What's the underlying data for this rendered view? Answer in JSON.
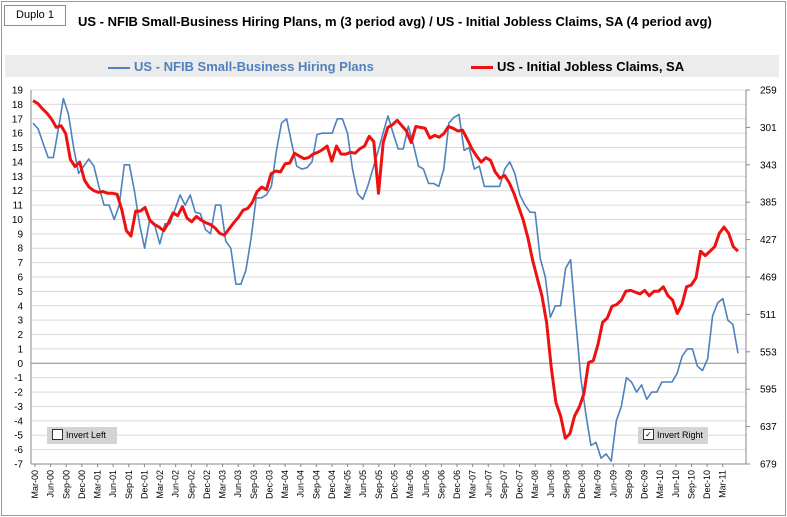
{
  "widget": {
    "label": "Duplo 1"
  },
  "chart_data": {
    "type": "line",
    "title": "US - NFIB Small-Business Hiring Plans, m (3 period avg) / US - Initial Jobless Claims, SA (4 period avg)",
    "legend_position": "top",
    "grid": "horizontal",
    "x_tick_labels": [
      "Mar-00",
      "Jun-00",
      "Sep-00",
      "Dec-00",
      "Mar-01",
      "Jun-01",
      "Sep-01",
      "Dec-01",
      "Mar-02",
      "Jun-02",
      "Sep-02",
      "Dec-02",
      "Mar-03",
      "Jun-03",
      "Sep-03",
      "Dec-03",
      "Mar-04",
      "Jun-04",
      "Sep-04",
      "Dec-04",
      "Mar-05",
      "Jun-05",
      "Sep-05",
      "Dec-05",
      "Mar-06",
      "Jun-06",
      "Sep-06",
      "Dec-06",
      "Mar-07",
      "Jun-07",
      "Sep-07",
      "Dec-07",
      "Mar-08",
      "Jun-08",
      "Sep-08",
      "Dec-08",
      "Mar-09",
      "Jun-09",
      "Sep-09",
      "Dec-09",
      "Mar-10",
      "Jun-10",
      "Sep-10",
      "Dec-10",
      "Mar-11"
    ],
    "left_axis": {
      "min": -7,
      "max": 19,
      "ticks": [
        19,
        18,
        17,
        16,
        15,
        14,
        13,
        12,
        11,
        10,
        9,
        8,
        7,
        6,
        5,
        4,
        3,
        2,
        1,
        0,
        -1,
        -2,
        -3,
        -4,
        -5,
        -6,
        -7
      ]
    },
    "right_axis": {
      "min": 259,
      "max": 679,
      "inverted": true,
      "ticks": [
        259,
        301,
        343,
        385,
        427,
        469,
        511,
        553,
        595,
        637,
        679
      ]
    },
    "series": [
      {
        "name": "US - NFIB Small-Business Hiring Plans",
        "axis": "left",
        "color": "#4f81bd",
        "values": [
          16.7,
          16.3,
          15.3,
          14.3,
          14.3,
          16.3,
          18.4,
          17.3,
          15,
          13.2,
          13.7,
          14.2,
          13.7,
          12.3,
          11,
          11,
          10,
          11,
          13.8,
          13.8,
          12,
          9.7,
          8,
          10,
          9.6,
          8.3,
          9.7,
          9.7,
          10.7,
          11.7,
          11,
          11.7,
          10.5,
          10.4,
          9.3,
          9,
          11,
          11,
          8.5,
          8,
          5.5,
          5.5,
          6.5,
          8.7,
          11.5,
          11.5,
          11.7,
          12.3,
          14.8,
          16.7,
          17,
          15.3,
          13.7,
          13.5,
          13.6,
          14,
          15.9,
          16,
          16,
          16,
          17,
          17,
          16,
          13.5,
          11.8,
          11.4,
          12.3,
          13.5,
          14.7,
          16,
          17.2,
          16,
          14.9,
          14.9,
          16.5,
          15.2,
          13.7,
          13.5,
          12.5,
          12.5,
          12.3,
          13.5,
          16.7,
          17.1,
          17.3,
          14.8,
          15,
          13.5,
          13.7,
          12.3,
          12.3,
          12.3,
          12.3,
          13.5,
          14,
          13.2,
          11.7,
          11,
          10.5,
          10.5,
          7.3,
          6,
          3.2,
          4,
          4,
          6.6,
          7.2,
          3,
          -1,
          -3.5,
          -5.7,
          -5.5,
          -6.6,
          -6.3,
          -6.8,
          -4,
          -3,
          -1,
          -1.3,
          -2,
          -1.5,
          -2.5,
          -2,
          -2,
          -1.3,
          -1.3,
          -1.3,
          -0.7,
          0.5,
          1,
          1,
          -0.2,
          -0.5,
          0.3,
          3.3,
          4.2,
          4.5,
          3,
          2.7,
          0.7
        ]
      },
      {
        "name": "US - Initial Jobless Claims, SA",
        "axis": "right",
        "color": "#ee1111",
        "values": [
          271,
          274,
          280,
          285,
          292,
          301,
          299,
          308,
          337,
          345,
          340,
          360,
          368,
          372,
          374,
          373,
          375,
          375,
          376,
          393,
          417,
          423,
          395,
          395,
          391,
          405,
          410,
          413,
          417,
          408,
          397,
          400,
          390,
          403,
          407,
          401,
          405,
          408,
          410,
          414,
          420,
          422,
          415,
          408,
          402,
          394,
          392,
          385,
          373,
          368,
          371,
          353,
          350,
          351,
          342,
          341,
          330,
          333,
          336,
          335,
          331,
          329,
          326,
          322,
          339,
          322,
          331,
          331,
          329,
          330,
          325,
          322,
          311,
          317,
          375,
          318,
          301,
          298,
          293,
          299,
          305,
          318,
          300,
          301,
          302,
          313,
          310,
          312,
          308,
          300,
          302,
          305,
          304,
          314,
          325,
          333,
          340,
          335,
          338,
          351,
          358,
          355,
          363,
          375,
          390,
          405,
          425,
          450,
          470,
          490,
          520,
          570,
          610,
          625,
          650,
          645,
          625,
          615,
          600,
          565,
          563,
          545,
          520,
          515,
          502,
          500,
          495,
          485,
          484,
          486,
          488,
          484,
          490,
          485,
          485,
          480,
          490,
          495,
          510,
          500,
          480,
          478,
          470,
          440,
          445,
          440,
          435,
          420,
          413,
          420,
          435,
          440
        ]
      }
    ]
  },
  "checkboxes": {
    "invert_left": {
      "label": "Invert Left",
      "checked": ""
    },
    "invert_right": {
      "label": "Invert Right",
      "checked": "✓"
    }
  }
}
